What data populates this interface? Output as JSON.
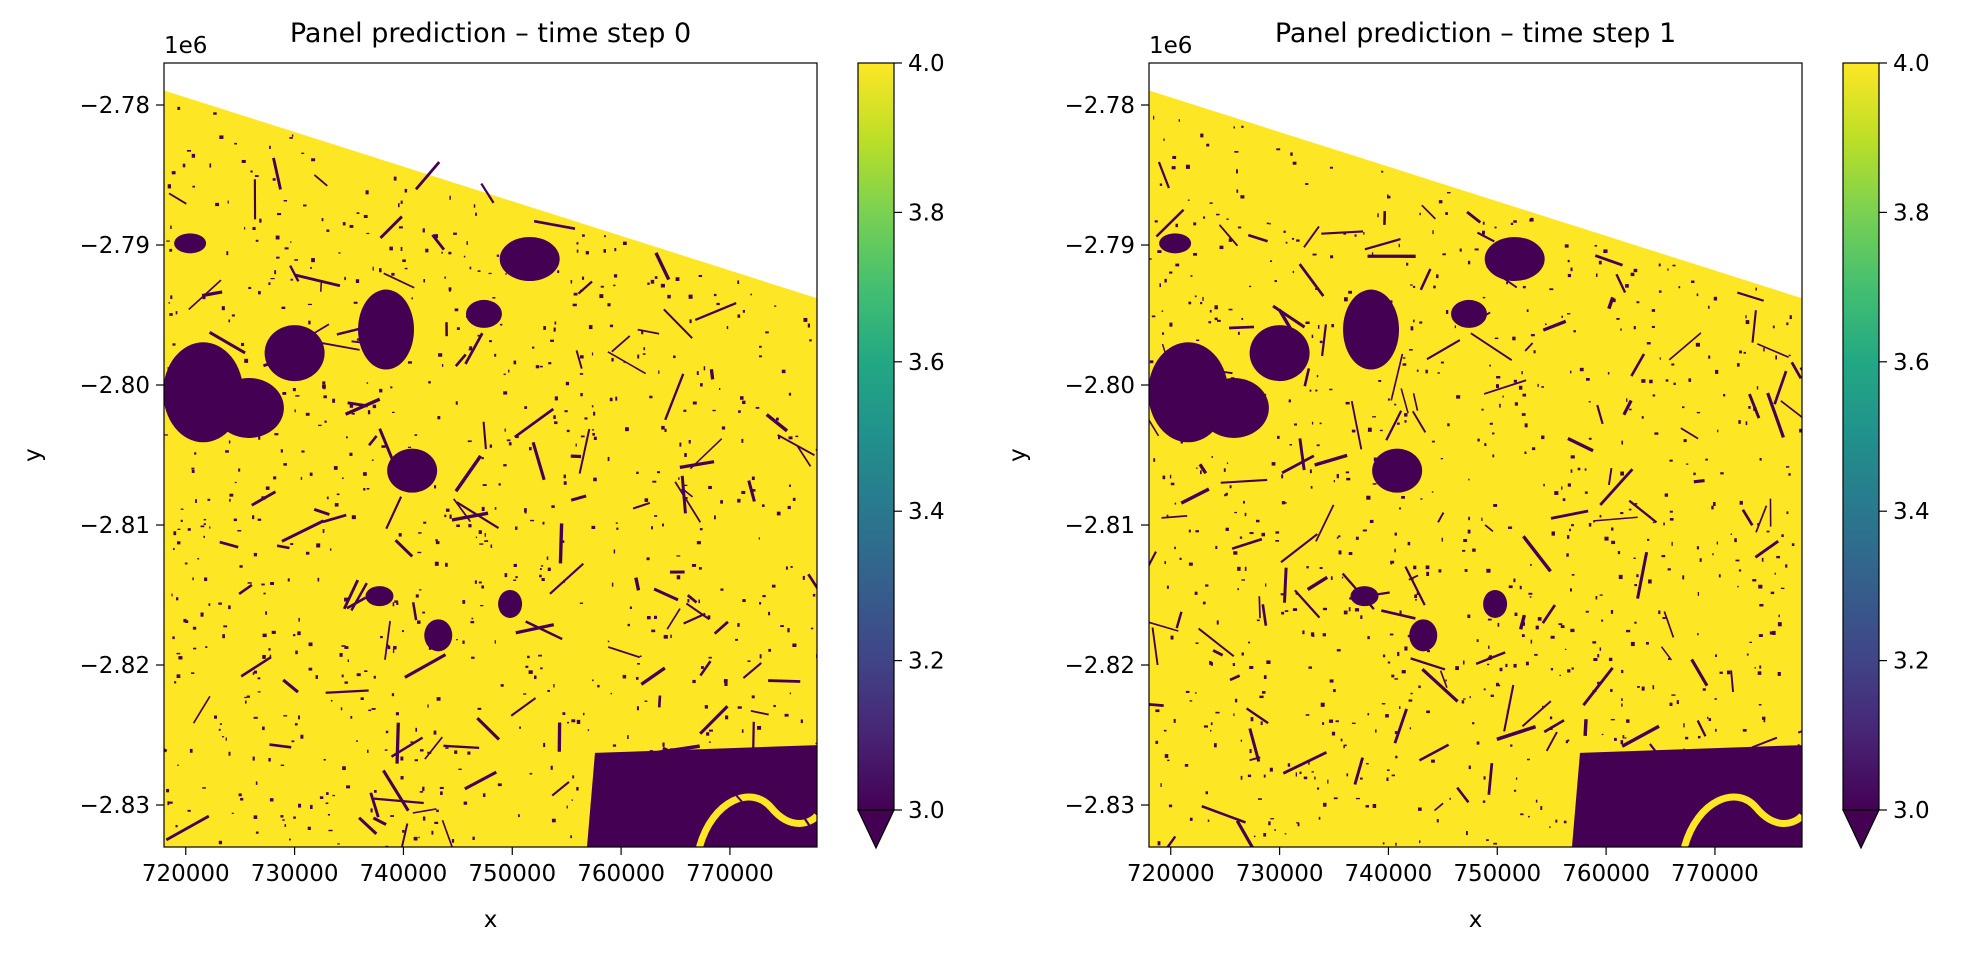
{
  "chart_data": [
    {
      "type": "heatmap",
      "title": "Panel prediction – time step 0",
      "xlabel": "x",
      "ylabel": "y",
      "y_offset_label": "1e6",
      "xlim": [
        718000,
        778000
      ],
      "ylim": [
        -2.833,
        -2.777
      ],
      "x_ticks": [
        720000,
        730000,
        740000,
        750000,
        760000,
        770000
      ],
      "x_tick_labels": [
        "720000",
        "730000",
        "740000",
        "750000",
        "760000",
        "770000"
      ],
      "y_ticks": [
        -2.78,
        -2.79,
        -2.8,
        -2.81,
        -2.82,
        -2.83
      ],
      "y_tick_labels": [
        "−2.78",
        "−2.79",
        "−2.80",
        "−2.81",
        "−2.82",
        "−2.83"
      ],
      "colorbar": {
        "vmin": 3.0,
        "vmax": 4.0,
        "ticks": [
          3.0,
          3.2,
          3.4,
          3.6,
          3.8,
          4.0
        ],
        "tick_labels": [
          "3.0",
          "3.2",
          "3.4",
          "3.6",
          "3.8",
          "4.0"
        ],
        "extend": "min",
        "colormap": "viridis"
      },
      "values_present": [
        3,
        4
      ],
      "colors": {
        "low": "#440154",
        "high": "#fde725"
      }
    },
    {
      "type": "heatmap",
      "title": "Panel prediction – time step 1",
      "xlabel": "x",
      "ylabel": "y",
      "y_offset_label": "1e6",
      "xlim": [
        718000,
        778000
      ],
      "ylim": [
        -2.833,
        -2.777
      ],
      "x_ticks": [
        720000,
        730000,
        740000,
        750000,
        760000,
        770000
      ],
      "x_tick_labels": [
        "720000",
        "730000",
        "740000",
        "750000",
        "760000",
        "770000"
      ],
      "y_ticks": [
        -2.78,
        -2.79,
        -2.8,
        -2.81,
        -2.82,
        -2.83
      ],
      "y_tick_labels": [
        "−2.78",
        "−2.79",
        "−2.80",
        "−2.81",
        "−2.82",
        "−2.83"
      ],
      "colorbar": {
        "vmin": 3.0,
        "vmax": 4.0,
        "ticks": [
          3.0,
          3.2,
          3.4,
          3.6,
          3.8,
          4.0
        ],
        "tick_labels": [
          "3.0",
          "3.2",
          "3.4",
          "3.6",
          "3.8",
          "4.0"
        ],
        "extend": "min",
        "colormap": "viridis"
      },
      "values_present": [
        3,
        4
      ],
      "colors": {
        "low": "#440154",
        "high": "#fde725"
      }
    }
  ]
}
